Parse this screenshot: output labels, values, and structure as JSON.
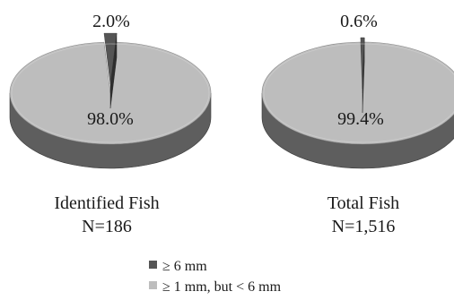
{
  "chart_data": [
    {
      "type": "pie",
      "title": "Identified Fish",
      "subtitle": "N=186",
      "slices": [
        {
          "label": "≥ 6 mm",
          "value": 2.0,
          "value_label": "2.0%"
        },
        {
          "label": "≥ 1 mm, but < 6 mm",
          "value": 98.0,
          "value_label": "98.0%"
        }
      ]
    },
    {
      "type": "pie",
      "title": "Total Fish",
      "subtitle": "N=1,516",
      "slices": [
        {
          "label": "≥ 6 mm",
          "value": 0.6,
          "value_label": "0.6%"
        },
        {
          "label": "≥ 1 mm, but < 6 mm",
          "value": 99.4,
          "value_label": "99.4%"
        }
      ]
    }
  ],
  "legend": {
    "position": "bottom-center",
    "items": [
      {
        "label": "≥ 6 mm",
        "color": "#555555"
      },
      {
        "label": "≥ 1 mm, but < 6 mm",
        "color": "#bdbdbd"
      }
    ]
  },
  "colors": {
    "large_top": "#555555",
    "large_side": "#2e2e2e",
    "small_top": "#bdbdbd",
    "small_side": "#5e5e5e"
  }
}
